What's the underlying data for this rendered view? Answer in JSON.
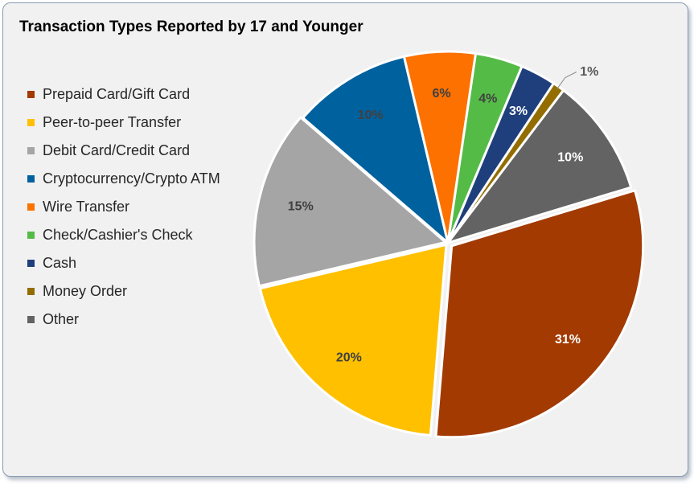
{
  "chart_data": {
    "type": "pie",
    "title": "Transaction Types Reported by 17 and Younger",
    "legend_position": "left",
    "slices": [
      {
        "label": "Prepaid Card/Gift Card",
        "value": 31,
        "display": "31%",
        "color": "#a33a02",
        "label_color": "#ffffff"
      },
      {
        "label": "Peer-to-peer Transfer",
        "value": 20,
        "display": "20%",
        "color": "#ffc000",
        "label_color": "#404040"
      },
      {
        "label": "Debit Card/Credit Card",
        "value": 15,
        "display": "15%",
        "color": "#a5a5a5",
        "label_color": "#404040"
      },
      {
        "label": "Cryptocurrency/Crypto ATM",
        "value": 10,
        "display": "10%",
        "color": "#00619f",
        "label_color": "#404040"
      },
      {
        "label": "Wire Transfer",
        "value": 6,
        "display": "6%",
        "color": "#fc7100",
        "label_color": "#404040"
      },
      {
        "label": "Check/Cashier's Check",
        "value": 4,
        "display": "4%",
        "color": "#55bb47",
        "label_color": "#404040"
      },
      {
        "label": "Cash",
        "value": 3,
        "display": "3%",
        "color": "#1f3f7c",
        "label_color": "#ffffff"
      },
      {
        "label": "Money Order",
        "value": 1,
        "display": "1%",
        "color": "#936d00",
        "label_color": "#404040"
      },
      {
        "label": "Other",
        "value": 10,
        "display": "10%",
        "color": "#636363",
        "label_color": "#ffffff"
      }
    ]
  }
}
